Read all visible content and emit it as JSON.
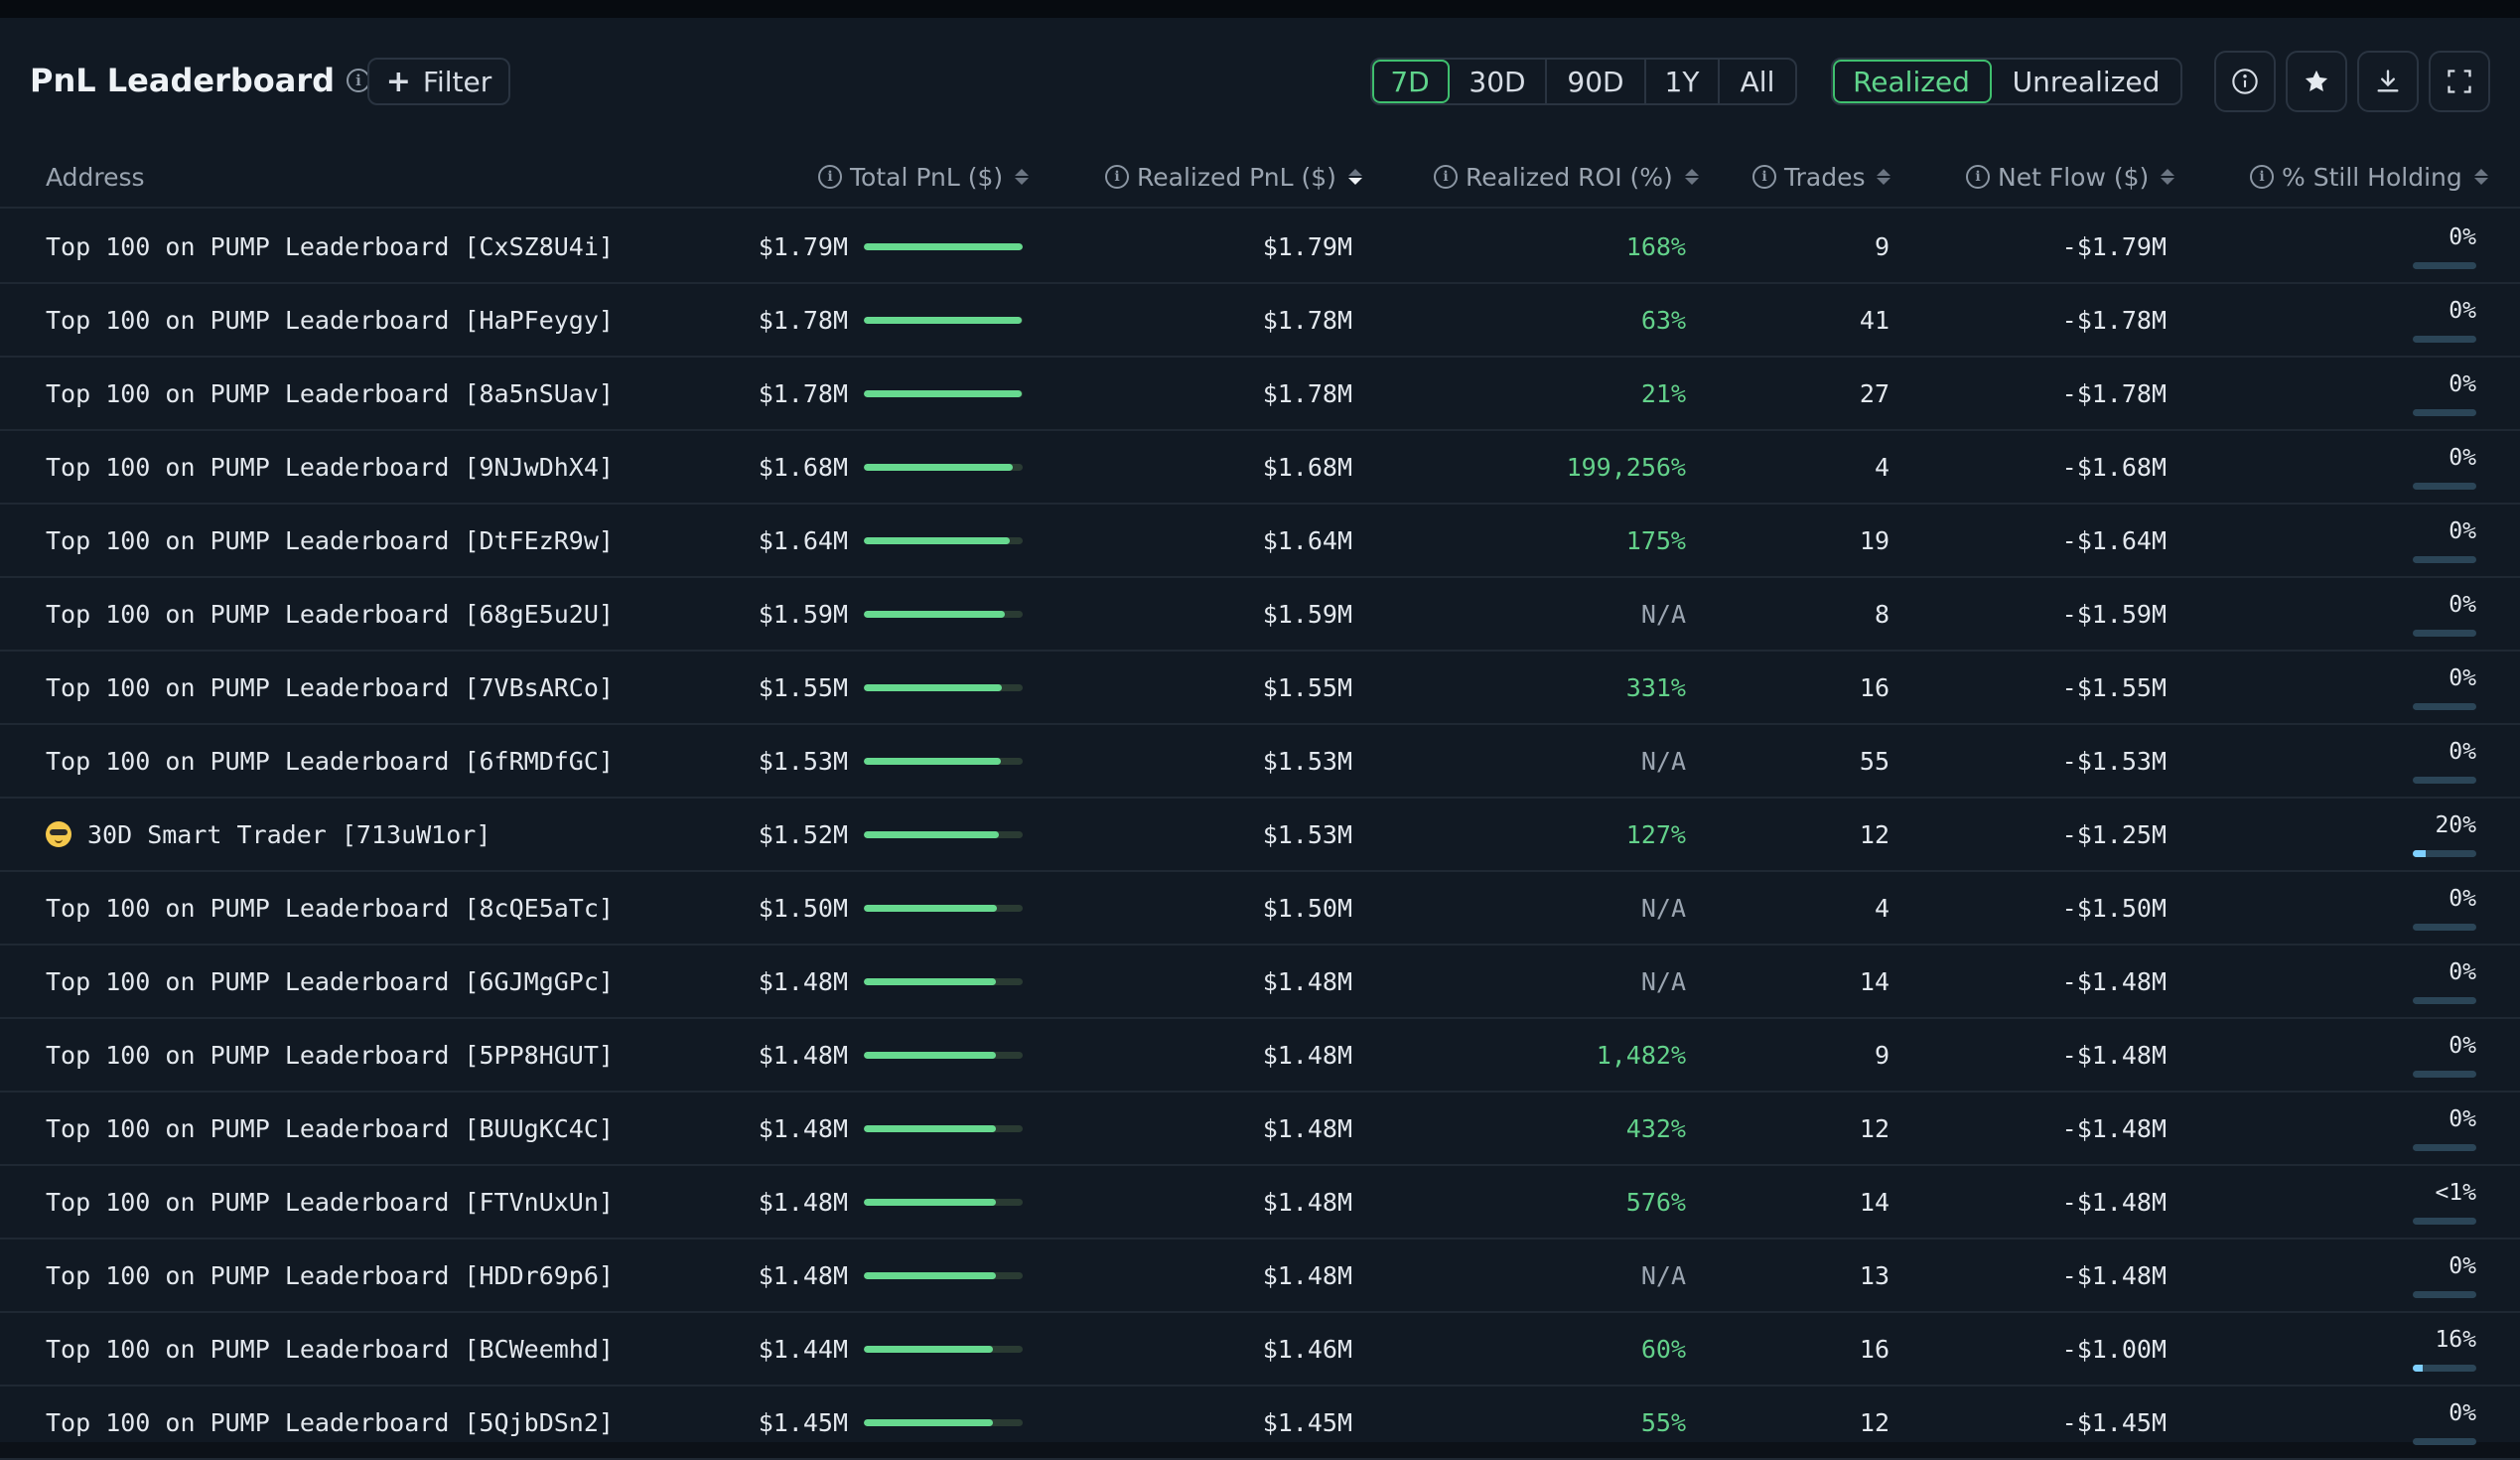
{
  "header": {
    "title": "PnL Leaderboard",
    "filter_label": "Filter",
    "time_ranges": [
      "7D",
      "30D",
      "90D",
      "1Y",
      "All"
    ],
    "active_time_range": "7D",
    "modes": [
      "Realized",
      "Unrealized"
    ],
    "active_mode": "Realized",
    "icons": [
      "info-icon",
      "star-icon",
      "download-icon",
      "fullscreen-icon"
    ]
  },
  "columns": {
    "address": "Address",
    "total_pnl": "Total PnL ($)",
    "realized_pnl": "Realized PnL ($)",
    "realized_roi": "Realized ROI (%)",
    "trades": "Trades",
    "net_flow": "Net Flow ($)",
    "still_holding": "% Still Holding"
  },
  "sort": {
    "column": "realized_pnl",
    "direction": "desc"
  },
  "colors": {
    "accent": "#5fd48b",
    "bar": "#67d98f",
    "hold_bar": "#7fd0ff",
    "background": "#111923"
  },
  "rows": [
    {
      "address": "Top 100 on PUMP Leaderboard [CxSZ8U4i]",
      "total": "$1.79M",
      "bar": 1.0,
      "realized": "$1.79M",
      "roi": "168%",
      "roi_na": false,
      "trades": "9",
      "netflow": "-$1.79M",
      "hold": "0%",
      "hold_frac": 0
    },
    {
      "address": "Top 100 on PUMP Leaderboard [HaPFeygy]",
      "total": "$1.78M",
      "bar": 0.995,
      "realized": "$1.78M",
      "roi": "63%",
      "roi_na": false,
      "trades": "41",
      "netflow": "-$1.78M",
      "hold": "0%",
      "hold_frac": 0
    },
    {
      "address": "Top 100 on PUMP Leaderboard [8a5nSUav]",
      "total": "$1.78M",
      "bar": 0.995,
      "realized": "$1.78M",
      "roi": "21%",
      "roi_na": false,
      "trades": "27",
      "netflow": "-$1.78M",
      "hold": "0%",
      "hold_frac": 0
    },
    {
      "address": "Top 100 on PUMP Leaderboard [9NJwDhX4]",
      "total": "$1.68M",
      "bar": 0.94,
      "realized": "$1.68M",
      "roi": "199,256%",
      "roi_na": false,
      "trades": "4",
      "netflow": "-$1.68M",
      "hold": "0%",
      "hold_frac": 0
    },
    {
      "address": "Top 100 on PUMP Leaderboard [DtFEzR9w]",
      "total": "$1.64M",
      "bar": 0.92,
      "realized": "$1.64M",
      "roi": "175%",
      "roi_na": false,
      "trades": "19",
      "netflow": "-$1.64M",
      "hold": "0%",
      "hold_frac": 0
    },
    {
      "address": "Top 100 on PUMP Leaderboard [68gE5u2U]",
      "total": "$1.59M",
      "bar": 0.89,
      "realized": "$1.59M",
      "roi": "N/A",
      "roi_na": true,
      "trades": "8",
      "netflow": "-$1.59M",
      "hold": "0%",
      "hold_frac": 0
    },
    {
      "address": "Top 100 on PUMP Leaderboard [7VBsARCo]",
      "total": "$1.55M",
      "bar": 0.87,
      "realized": "$1.55M",
      "roi": "331%",
      "roi_na": false,
      "trades": "16",
      "netflow": "-$1.55M",
      "hold": "0%",
      "hold_frac": 0
    },
    {
      "address": "Top 100 on PUMP Leaderboard [6fRMDfGC]",
      "total": "$1.53M",
      "bar": 0.86,
      "realized": "$1.53M",
      "roi": "N/A",
      "roi_na": true,
      "trades": "55",
      "netflow": "-$1.53M",
      "hold": "0%",
      "hold_frac": 0
    },
    {
      "address": "30D Smart Trader [713uW1or]",
      "emoji": true,
      "total": "$1.52M",
      "bar": 0.85,
      "realized": "$1.53M",
      "roi": "127%",
      "roi_na": false,
      "trades": "12",
      "netflow": "-$1.25M",
      "hold": "20%",
      "hold_frac": 0.2
    },
    {
      "address": "Top 100 on PUMP Leaderboard [8cQE5aTc]",
      "total": "$1.50M",
      "bar": 0.84,
      "realized": "$1.50M",
      "roi": "N/A",
      "roi_na": true,
      "trades": "4",
      "netflow": "-$1.50M",
      "hold": "0%",
      "hold_frac": 0
    },
    {
      "address": "Top 100 on PUMP Leaderboard [6GJMgGPc]",
      "total": "$1.48M",
      "bar": 0.83,
      "realized": "$1.48M",
      "roi": "N/A",
      "roi_na": true,
      "trades": "14",
      "netflow": "-$1.48M",
      "hold": "0%",
      "hold_frac": 0
    },
    {
      "address": "Top 100 on PUMP Leaderboard [5PP8HGUT]",
      "total": "$1.48M",
      "bar": 0.83,
      "realized": "$1.48M",
      "roi": "1,482%",
      "roi_na": false,
      "trades": "9",
      "netflow": "-$1.48M",
      "hold": "0%",
      "hold_frac": 0
    },
    {
      "address": "Top 100 on PUMP Leaderboard [BUUgKC4C]",
      "total": "$1.48M",
      "bar": 0.83,
      "realized": "$1.48M",
      "roi": "432%",
      "roi_na": false,
      "trades": "12",
      "netflow": "-$1.48M",
      "hold": "0%",
      "hold_frac": 0
    },
    {
      "address": "Top 100 on PUMP Leaderboard [FTVnUxUn]",
      "total": "$1.48M",
      "bar": 0.83,
      "realized": "$1.48M",
      "roi": "576%",
      "roi_na": false,
      "trades": "14",
      "netflow": "-$1.48M",
      "hold": "<1%",
      "hold_frac": 0
    },
    {
      "address": "Top 100 on PUMP Leaderboard [HDDr69p6]",
      "total": "$1.48M",
      "bar": 0.83,
      "realized": "$1.48M",
      "roi": "N/A",
      "roi_na": true,
      "trades": "13",
      "netflow": "-$1.48M",
      "hold": "0%",
      "hold_frac": 0
    },
    {
      "address": "Top 100 on PUMP Leaderboard [BCWeemhd]",
      "total": "$1.44M",
      "bar": 0.81,
      "realized": "$1.46M",
      "roi": "60%",
      "roi_na": false,
      "trades": "16",
      "netflow": "-$1.00M",
      "hold": "16%",
      "hold_frac": 0.16
    },
    {
      "address": "Top 100 on PUMP Leaderboard [5QjbDSn2]",
      "total": "$1.45M",
      "bar": 0.81,
      "realized": "$1.45M",
      "roi": "55%",
      "roi_na": false,
      "trades": "12",
      "netflow": "-$1.45M",
      "hold": "0%",
      "hold_frac": 0
    }
  ]
}
